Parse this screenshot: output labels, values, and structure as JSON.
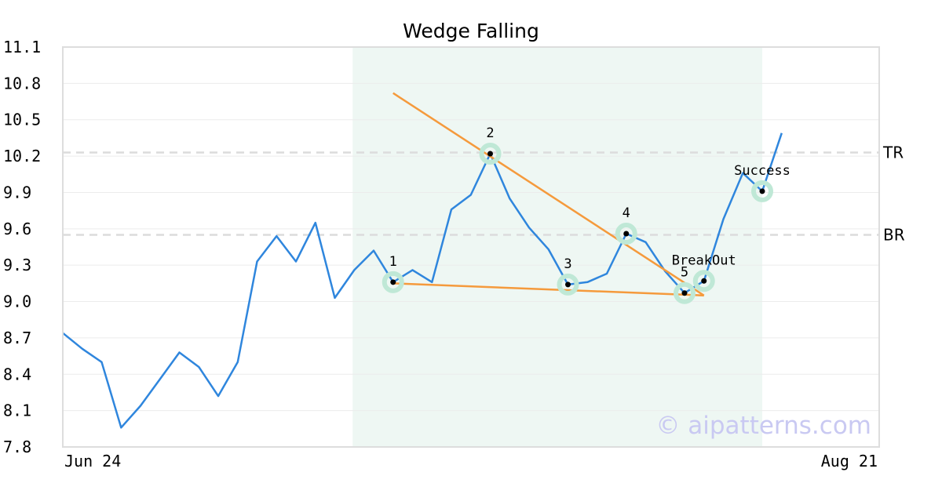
{
  "chart_data": {
    "type": "line",
    "title": "Wedge Falling",
    "xlabel": "",
    "ylabel": "",
    "ylim": [
      7.8,
      11.1
    ],
    "y_ticks": [
      "7.8",
      "8.1",
      "8.4",
      "8.7",
      "9.0",
      "9.3",
      "9.6",
      "9.9",
      "10.2",
      "10.5",
      "10.8",
      "11.1"
    ],
    "x_tick_labels": [
      "Jun 24",
      "Aug 21"
    ],
    "grid": "horizontal",
    "series": [
      {
        "color": "#2f86dd",
        "values": [
          8.74,
          8.61,
          8.5,
          7.96,
          8.14,
          8.36,
          8.58,
          8.46,
          8.22,
          8.5,
          9.33,
          9.54,
          9.33,
          9.65,
          9.03,
          9.26,
          9.42,
          9.16,
          9.26,
          9.16,
          9.76,
          9.88,
          10.22,
          9.85,
          9.61,
          9.43,
          9.14,
          9.16,
          9.23,
          9.56,
          9.49,
          9.25,
          9.07,
          9.17,
          9.68,
          10.06,
          9.91,
          10.39
        ]
      }
    ],
    "shaded_region": {
      "from_index": 15,
      "to_index": 36,
      "color": "#eef7f3"
    },
    "reference_lines": [
      {
        "label": "TR",
        "value": 10.23
      },
      {
        "label": "BR",
        "value": 9.55
      }
    ],
    "trend_lines": [
      {
        "name": "upper",
        "color": "#f59a3c",
        "from": {
          "index": 17,
          "value": 10.72
        },
        "to": {
          "index": 33,
          "value": 9.05
        }
      },
      {
        "name": "lower",
        "color": "#f59a3c",
        "from": {
          "index": 17,
          "value": 9.15
        },
        "to": {
          "index": 33,
          "value": 9.05
        }
      }
    ],
    "markers": [
      {
        "label": "1",
        "index": 17,
        "value": 9.16
      },
      {
        "label": "2",
        "index": 22,
        "value": 10.22
      },
      {
        "label": "3",
        "index": 26,
        "value": 9.14
      },
      {
        "label": "4",
        "index": 29,
        "value": 9.56
      },
      {
        "label": "5",
        "index": 32,
        "value": 9.07
      },
      {
        "label": "BreakOut",
        "index": 33,
        "value": 9.17
      },
      {
        "label": "Success",
        "index": 36,
        "value": 9.91
      }
    ],
    "watermark": "© aipatterns.com"
  }
}
